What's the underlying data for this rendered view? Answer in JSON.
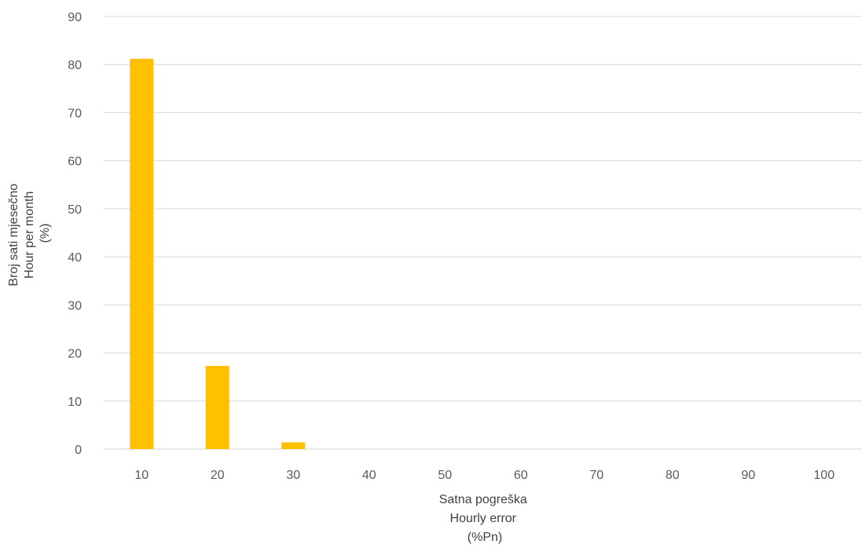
{
  "chart_data": {
    "type": "bar",
    "categories": [
      "10",
      "20",
      "30",
      "40",
      "50",
      "60",
      "70",
      "80",
      "90",
      "100"
    ],
    "values": [
      81.2,
      17.3,
      1.4,
      0,
      0,
      0,
      0,
      0,
      0,
      0
    ],
    "bar_color": "#FFC000",
    "ylim": [
      0,
      90
    ],
    "yticks": [
      "0",
      "10",
      "20",
      "30",
      "40",
      "50",
      "60",
      "70",
      "80",
      "90"
    ],
    "ylabel_lines": [
      "Broj sati mjesečno",
      "Hour per month",
      "(%)"
    ],
    "xlabel_lines": [
      "Satna pogreška",
      "Hourly error",
      "(%Pn)"
    ],
    "grid": true,
    "legend": "none"
  }
}
